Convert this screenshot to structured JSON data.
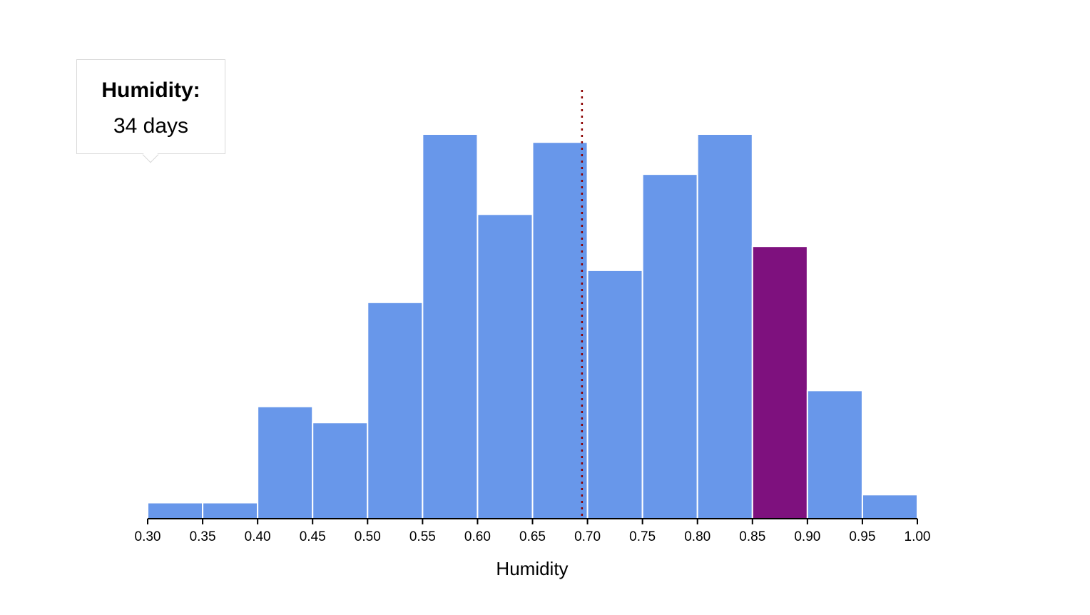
{
  "chart_data": {
    "type": "bar",
    "xlabel": "Humidity",
    "ylabel": "",
    "bins": [
      {
        "x0": 0.3,
        "x1": 0.35,
        "count": 2
      },
      {
        "x0": 0.35,
        "x1": 0.4,
        "count": 2
      },
      {
        "x0": 0.4,
        "x1": 0.45,
        "count": 14
      },
      {
        "x0": 0.45,
        "x1": 0.5,
        "count": 12
      },
      {
        "x0": 0.5,
        "x1": 0.55,
        "count": 27
      },
      {
        "x0": 0.55,
        "x1": 0.6,
        "count": 48
      },
      {
        "x0": 0.6,
        "x1": 0.65,
        "count": 38
      },
      {
        "x0": 0.65,
        "x1": 0.7,
        "count": 47
      },
      {
        "x0": 0.7,
        "x1": 0.75,
        "count": 31
      },
      {
        "x0": 0.75,
        "x1": 0.8,
        "count": 43
      },
      {
        "x0": 0.8,
        "x1": 0.85,
        "count": 48
      },
      {
        "x0": 0.85,
        "x1": 0.9,
        "count": 34
      },
      {
        "x0": 0.9,
        "x1": 0.95,
        "count": 16
      },
      {
        "x0": 0.95,
        "x1": 1.0,
        "count": 3
      }
    ],
    "highlighted_bin_index": 11,
    "mean": 0.695,
    "xlim": [
      0.3,
      1.0
    ],
    "ylim": [
      0,
      48
    ],
    "x_ticks": [
      "0.30",
      "0.35",
      "0.40",
      "0.45",
      "0.50",
      "0.55",
      "0.60",
      "0.65",
      "0.70",
      "0.75",
      "0.80",
      "0.85",
      "0.90",
      "0.95",
      "1.00"
    ],
    "grid": false,
    "colors": {
      "bar": "#6897EA",
      "highlight": "#7E117E",
      "mean_line": "#8B0000",
      "axis": "#000000"
    }
  },
  "tooltip": {
    "label": "Humidity:",
    "count": "34",
    "unit": "days"
  }
}
